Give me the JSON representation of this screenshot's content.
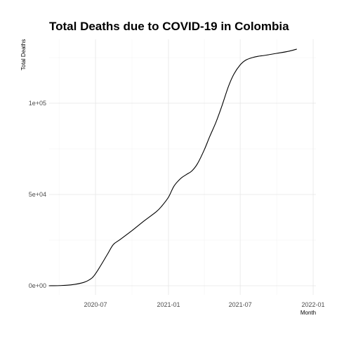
{
  "chart_data": {
    "type": "line",
    "title": "Total Deaths due to COVID-19 in Colombia",
    "xlabel": "Month",
    "ylabel": "Total Deaths",
    "x_tick_labels": [
      {
        "date": "2020-07-01",
        "label": "2020-07"
      },
      {
        "date": "2021-01-01",
        "label": "2021-01"
      },
      {
        "date": "2021-07-01",
        "label": "2021-07"
      },
      {
        "date": "2022-01-01",
        "label": "2022-01"
      }
    ],
    "y_tick_labels": [
      {
        "value": 0,
        "label": "0e+00"
      },
      {
        "value": 50000,
        "label": "5e+04"
      },
      {
        "value": 100000,
        "label": "1e+05"
      }
    ],
    "xlim": [
      "2020-03-06",
      "2022-01-08"
    ],
    "ylim": [
      -5000,
      135000
    ],
    "grid": true,
    "line_color": "#000000",
    "series": [
      {
        "x": [
          "2020-03-06",
          "2020-04-01",
          "2020-05-01",
          "2020-06-01",
          "2020-06-20",
          "2020-07-01",
          "2020-07-15",
          "2020-08-01",
          "2020-08-15",
          "2020-09-01",
          "2020-10-01",
          "2020-11-01",
          "2020-12-01",
          "2020-12-15",
          "2021-01-01",
          "2021-01-15",
          "2021-02-01",
          "2021-02-15",
          "2021-03-01",
          "2021-03-15",
          "2021-04-01",
          "2021-04-15",
          "2021-05-01",
          "2021-05-15",
          "2021-06-01",
          "2021-06-15",
          "2021-07-01",
          "2021-07-15",
          "2021-08-01",
          "2021-08-15",
          "2021-09-01",
          "2021-10-01",
          "2021-11-01",
          "2021-11-20"
        ],
        "y": [
          0,
          100,
          500,
          1800,
          3900,
          6600,
          11400,
          17600,
          22600,
          25300,
          30200,
          35600,
          40500,
          43600,
          48500,
          54600,
          58800,
          60900,
          62900,
          66800,
          74300,
          81700,
          89700,
          98000,
          109000,
          115900,
          121000,
          123600,
          125000,
          125700,
          126200,
          127300,
          128500,
          129600
        ]
      }
    ]
  }
}
